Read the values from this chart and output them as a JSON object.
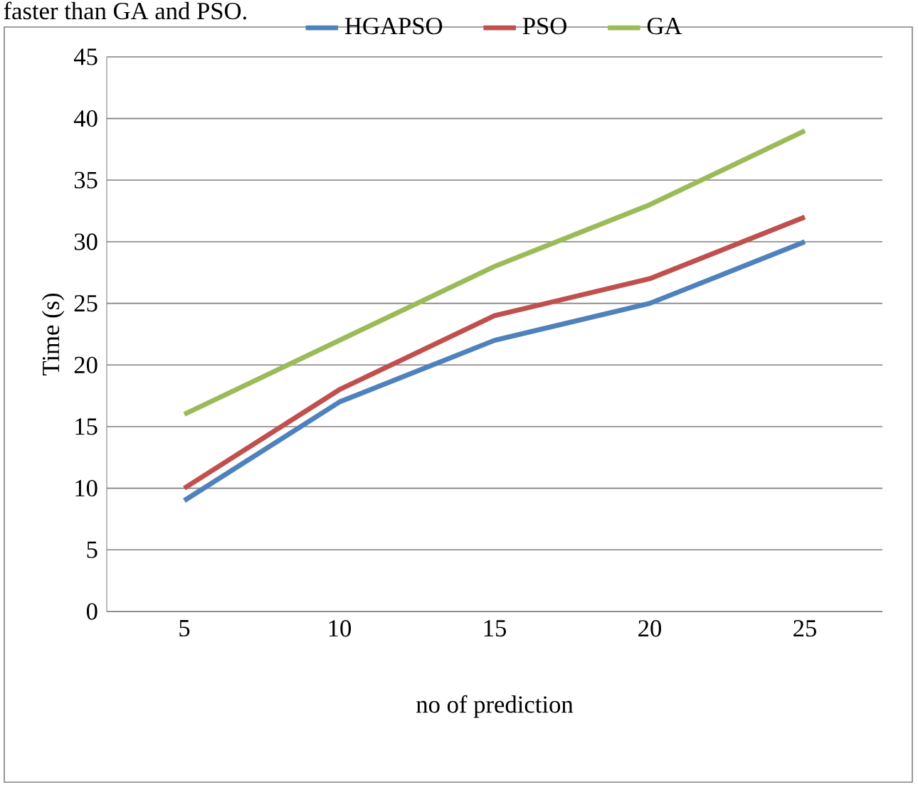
{
  "chart_data": {
    "type": "line",
    "xlabel": "no of prediction",
    "ylabel": "Time (s)",
    "annotations": [
      "faster than GA and PSO."
    ],
    "categories": [
      "5",
      "10",
      "15",
      "20",
      "25"
    ],
    "series": [
      {
        "name": "HGAPSO",
        "color": "#4f81bd",
        "values": [
          9,
          17,
          22,
          25,
          30
        ]
      },
      {
        "name": "PSO",
        "color": "#c0504d",
        "values": [
          10,
          18,
          24,
          27,
          32
        ]
      },
      {
        "name": "GA",
        "color": "#9bbb59",
        "values": [
          16,
          22,
          28,
          33,
          39
        ]
      }
    ],
    "ylim": [
      0,
      45
    ],
    "yticks": [
      0,
      5,
      10,
      15,
      20,
      25,
      30,
      35,
      40,
      45
    ],
    "grid": "y",
    "legend": "top",
    "marker": "none",
    "line_style": "solid"
  }
}
